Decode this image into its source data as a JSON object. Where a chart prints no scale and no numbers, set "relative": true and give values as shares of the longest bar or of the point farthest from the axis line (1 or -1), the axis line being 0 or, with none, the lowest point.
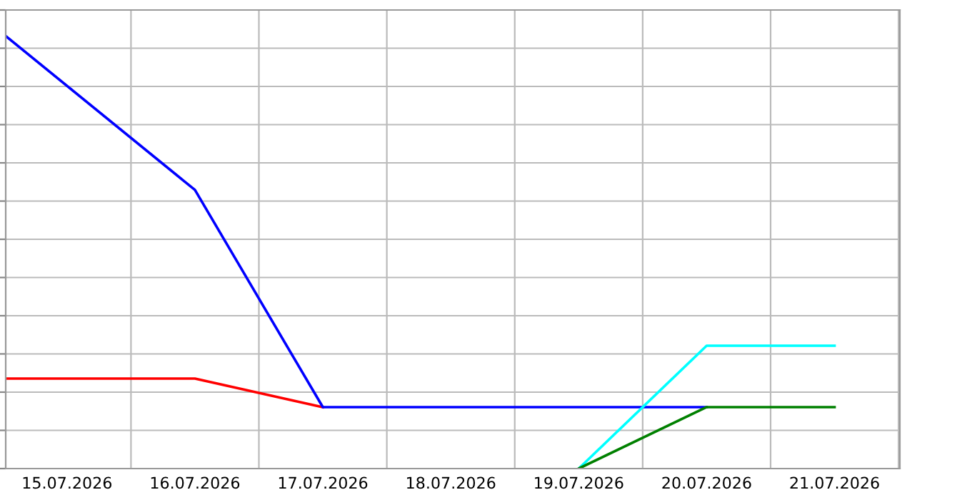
{
  "chart_data": {
    "type": "line",
    "relative": true,
    "grid": true,
    "marker": "none",
    "line_style": "solid",
    "xlim": [
      "2026-07-14T12:30",
      "2026-07-21T12:15"
    ],
    "xticks": [
      {
        "value": "2026-07-15",
        "label": "15.07.2026"
      },
      {
        "value": "2026-07-16",
        "label": "16.07.2026"
      },
      {
        "value": "2026-07-17",
        "label": "17.07.2026"
      },
      {
        "value": "2026-07-18",
        "label": "18.07.2026"
      },
      {
        "value": "2026-07-19",
        "label": "19.07.2026"
      },
      {
        "value": "2026-07-20",
        "label": "20.07.2026"
      },
      {
        "value": "2026-07-21",
        "label": "21.07.2026"
      }
    ],
    "series": [
      {
        "color": "#ff0000",
        "x": [
          "2026-07-14T12:30",
          "2026-07-16",
          "2026-07-17"
        ],
        "values": [
          0.208,
          0.208,
          0.142
        ]
      },
      {
        "color": "#0000ff",
        "x": [
          "2026-07-14T12:30",
          "2026-07-16",
          "2026-07-17",
          "2026-07-20"
        ],
        "values": [
          1,
          0.644,
          0.142,
          0.142
        ]
      },
      {
        "color": "#00ffff",
        "x": [
          "2026-07-19",
          "2026-07-20",
          "2026-07-21"
        ],
        "values": [
          0,
          0.284,
          0.284
        ]
      },
      {
        "color": "#008000",
        "x": [
          "2026-07-19",
          "2026-07-20",
          "2026-07-21"
        ],
        "values": [
          0,
          0.142,
          0.142
        ]
      }
    ]
  }
}
